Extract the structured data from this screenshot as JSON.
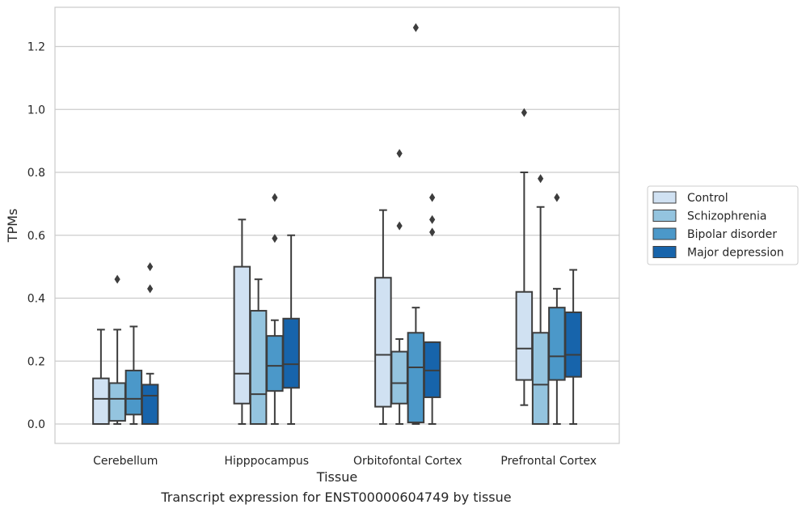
{
  "chart_data": {
    "type": "box",
    "caption": "Transcript expression for ENST00000604749 by tissue",
    "xlabel": "Tissue",
    "ylabel": "TPMs",
    "ylim": [
      -0.06,
      1.33
    ],
    "yticks": [
      0.0,
      0.2,
      0.4,
      0.6,
      0.8,
      1.0,
      1.2
    ],
    "ytick_labels": [
      "0.0",
      "0.2",
      "0.4",
      "0.6",
      "0.8",
      "1.0",
      "1.2"
    ],
    "grid": "horizontal",
    "legend_position": "right",
    "categories": [
      "Cerebellum",
      "Hipppocampus",
      "Orbitofontal Cortex",
      "Prefrontal Cortex"
    ],
    "series": [
      {
        "name": "Control",
        "color": "#d0e1f2",
        "boxes": [
          {
            "whislo": 0.0,
            "q1": 0.0,
            "med": 0.08,
            "q3": 0.145,
            "whishi": 0.3,
            "fliers": []
          },
          {
            "whislo": 0.0,
            "q1": 0.065,
            "med": 0.16,
            "q3": 0.5,
            "whishi": 0.65,
            "fliers": []
          },
          {
            "whislo": 0.0,
            "q1": 0.055,
            "med": 0.22,
            "q3": 0.465,
            "whishi": 0.68,
            "fliers": []
          },
          {
            "whislo": 0.06,
            "q1": 0.14,
            "med": 0.24,
            "q3": 0.42,
            "whishi": 0.8,
            "fliers": [
              0.99
            ]
          }
        ]
      },
      {
        "name": "Schizophrenia",
        "color": "#94c4df",
        "boxes": [
          {
            "whislo": 0.0,
            "q1": 0.01,
            "med": 0.08,
            "q3": 0.13,
            "whishi": 0.3,
            "fliers": [
              0.46
            ]
          },
          {
            "whislo": 0.0,
            "q1": 0.0,
            "med": 0.095,
            "q3": 0.36,
            "whishi": 0.46,
            "fliers": []
          },
          {
            "whislo": 0.0,
            "q1": 0.065,
            "med": 0.13,
            "q3": 0.23,
            "whishi": 0.27,
            "fliers": [
              0.63,
              0.86
            ]
          },
          {
            "whislo": 0.0,
            "q1": 0.0,
            "med": 0.125,
            "q3": 0.29,
            "whishi": 0.69,
            "fliers": [
              0.78
            ]
          }
        ]
      },
      {
        "name": "Bipolar disorder",
        "color": "#4b98c9",
        "boxes": [
          {
            "whislo": 0.0,
            "q1": 0.03,
            "med": 0.08,
            "q3": 0.17,
            "whishi": 0.31,
            "fliers": []
          },
          {
            "whislo": 0.0,
            "q1": 0.105,
            "med": 0.185,
            "q3": 0.28,
            "whishi": 0.33,
            "fliers": [
              0.59,
              0.72
            ]
          },
          {
            "whislo": 0.0,
            "q1": 0.005,
            "med": 0.18,
            "q3": 0.29,
            "whishi": 0.37,
            "fliers": [
              1.26
            ]
          },
          {
            "whislo": 0.0,
            "q1": 0.14,
            "med": 0.215,
            "q3": 0.37,
            "whishi": 0.43,
            "fliers": [
              0.72
            ]
          }
        ]
      },
      {
        "name": "Major depression",
        "color": "#1764ab",
        "boxes": [
          {
            "whislo": 0.0,
            "q1": 0.0,
            "med": 0.09,
            "q3": 0.125,
            "whishi": 0.16,
            "fliers": [
              0.43,
              0.5
            ]
          },
          {
            "whislo": 0.0,
            "q1": 0.115,
            "med": 0.19,
            "q3": 0.335,
            "whishi": 0.6,
            "fliers": []
          },
          {
            "whislo": 0.0,
            "q1": 0.085,
            "med": 0.17,
            "q3": 0.26,
            "whishi": 0.26,
            "fliers": [
              0.61,
              0.65,
              0.72
            ]
          },
          {
            "whislo": 0.0,
            "q1": 0.15,
            "med": 0.22,
            "q3": 0.355,
            "whishi": 0.49,
            "fliers": []
          }
        ]
      }
    ]
  }
}
